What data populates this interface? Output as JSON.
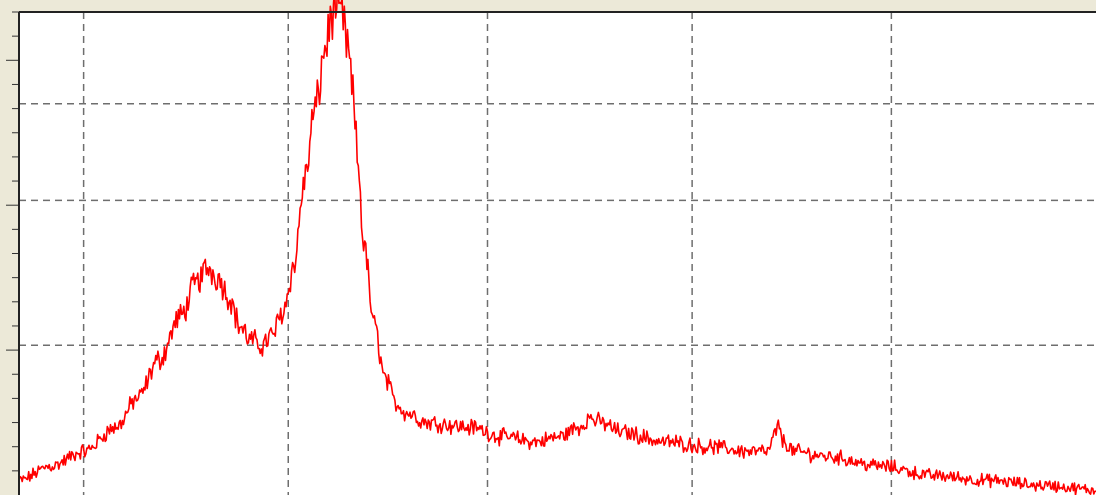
{
  "chart_data": {
    "type": "line",
    "title": "",
    "xlabel": "",
    "ylabel": "",
    "xlim": [
      0,
      100
    ],
    "ylim": [
      0,
      100
    ],
    "x_gridlines": [
      6,
      25,
      43.5,
      62.5,
      81
    ],
    "y_gridlines": [
      31,
      66,
      66.5
    ],
    "grid": true,
    "legend": "none",
    "series": [
      {
        "color": "#ff0000",
        "noise": 1.6,
        "x": [
          0,
          3,
          6,
          9,
          11,
          13,
          15,
          16.5,
          17.5,
          18.5,
          19.5,
          20.5,
          21.5,
          22.5,
          23.5,
          24.5,
          25.5,
          26.5,
          27.5,
          28.5,
          29,
          29.5,
          30,
          30.5,
          31,
          31.5,
          32,
          33,
          34,
          35,
          36,
          38,
          42,
          45,
          48,
          50,
          52,
          53,
          54,
          56,
          60,
          64,
          68,
          69.5,
          70.5,
          71,
          72,
          75,
          80,
          85,
          90,
          95,
          100
        ],
        "y": [
          3,
          6,
          9,
          14,
          20,
          28,
          37,
          44,
          47,
          45,
          41,
          35,
          32,
          31,
          33,
          38,
          47,
          65,
          80,
          93,
          99,
          101,
          99,
          93,
          83,
          68,
          52,
          35,
          24,
          19,
          17,
          15,
          14,
          12,
          11,
          12,
          14,
          16,
          15,
          13,
          11,
          10,
          9,
          9,
          14,
          11,
          9,
          8,
          6,
          4,
          3,
          2,
          1
        ]
      }
    ]
  }
}
